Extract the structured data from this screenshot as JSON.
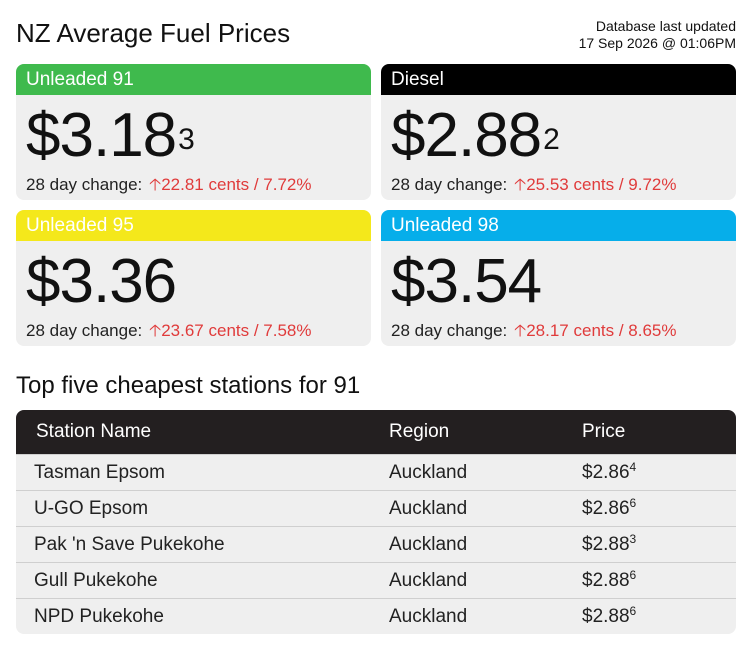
{
  "header": {
    "title": "NZ Average Fuel Prices",
    "updated_label": "Database last updated",
    "updated_value": "17 Sep 2026 @ 01:06PM"
  },
  "cards": [
    {
      "name": "Unleaded 91",
      "price_main": "$3.18",
      "price_sup": "3",
      "change_label": "28 day change:",
      "change_value": "22.81 cents / 7.72%",
      "color": "#3fba4d"
    },
    {
      "name": "Diesel",
      "price_main": "$2.88",
      "price_sup": "2",
      "change_label": "28 day change:",
      "change_value": "25.53 cents / 9.72%",
      "color": "#000000"
    },
    {
      "name": "Unleaded 95",
      "price_main": "$3.36",
      "price_sup": "",
      "change_label": "28 day change:",
      "change_value": "23.67 cents / 7.58%",
      "color": "#f4e81b"
    },
    {
      "name": "Unleaded 98",
      "price_main": "$3.54",
      "price_sup": "",
      "change_label": "28 day change:",
      "change_value": "28.17 cents / 8.65%",
      "color": "#06aeea"
    }
  ],
  "change_icon": "arrow-up-icon",
  "change_color": "#e03b3b",
  "stations": {
    "title": "Top five cheapest stations for 91",
    "columns": [
      "Station Name",
      "Region",
      "Price"
    ],
    "rows": [
      {
        "name": "Tasman Epsom",
        "region": "Auckland",
        "price_main": "$2.86",
        "price_sup": "4"
      },
      {
        "name": "U-GO Epsom",
        "region": "Auckland",
        "price_main": "$2.86",
        "price_sup": "6"
      },
      {
        "name": "Pak 'n Save Pukekohe",
        "region": "Auckland",
        "price_main": "$2.88",
        "price_sup": "3"
      },
      {
        "name": "Gull Pukekohe",
        "region": "Auckland",
        "price_main": "$2.88",
        "price_sup": "6"
      },
      {
        "name": "NPD Pukekohe",
        "region": "Auckland",
        "price_main": "$2.88",
        "price_sup": "6"
      }
    ]
  }
}
